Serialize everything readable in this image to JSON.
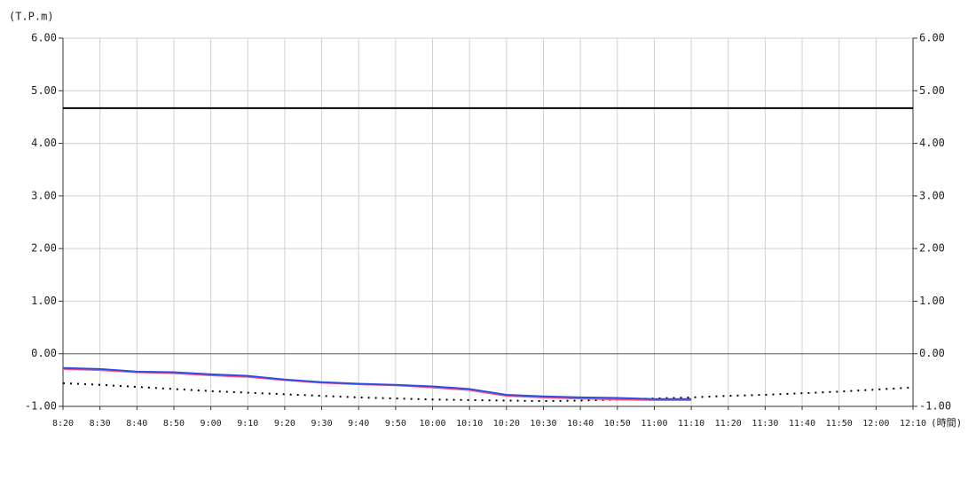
{
  "chart_data": {
    "type": "line",
    "y_label": "(T.P.m)",
    "x_label": "(時間)",
    "categories": [
      "8:20",
      "8:30",
      "8:40",
      "8:50",
      "9:00",
      "9:10",
      "9:20",
      "9:30",
      "9:40",
      "9:50",
      "10:00",
      "10:10",
      "10:20",
      "10:30",
      "10:40",
      "10:50",
      "11:00",
      "11:10",
      "11:20",
      "11:30",
      "11:40",
      "11:50",
      "12:00",
      "12:10"
    ],
    "ylim": [
      -1,
      6
    ],
    "yticks": [
      {
        "value": -1,
        "label": "-1.00"
      },
      {
        "value": 0,
        "label": "0.00"
      },
      {
        "value": 1,
        "label": "1.00"
      },
      {
        "value": 2,
        "label": "2.00"
      },
      {
        "value": 3,
        "label": "3.00"
      },
      {
        "value": 4,
        "label": "4.00"
      },
      {
        "value": 5,
        "label": "5.00"
      },
      {
        "value": 6,
        "label": "6.00"
      }
    ],
    "grid": true,
    "series": [
      {
        "color": "#000000",
        "style": "solid",
        "values": [
          4.67,
          4.67,
          4.67,
          4.67,
          4.67,
          4.67,
          4.67,
          4.67,
          4.67,
          4.67,
          4.67,
          4.67,
          4.67,
          4.67,
          4.67,
          4.67,
          4.67,
          4.67,
          4.67,
          4.67,
          4.67,
          4.67,
          4.67,
          4.67
        ]
      },
      {
        "color": "#000000",
        "style": "dotted",
        "values": [
          -0.56,
          -0.59,
          -0.63,
          -0.67,
          -0.71,
          -0.74,
          -0.77,
          -0.8,
          -0.83,
          -0.85,
          -0.87,
          -0.88,
          -0.89,
          -0.9,
          -0.89,
          -0.87,
          -0.85,
          -0.83,
          -0.8,
          -0.78,
          -0.75,
          -0.72,
          -0.68,
          -0.64
        ]
      },
      {
        "color": "#ff4d7a",
        "style": "solid",
        "values": [
          -0.29,
          -0.31,
          -0.35,
          -0.37,
          -0.41,
          -0.44,
          -0.5,
          -0.55,
          -0.58,
          -0.6,
          -0.64,
          -0.69,
          -0.8,
          -0.83,
          -0.85,
          -0.87,
          -0.88,
          -0.88,
          null,
          null,
          null,
          null,
          null,
          null
        ]
      },
      {
        "color": "#2b50e0",
        "style": "solid",
        "values": [
          -0.27,
          -0.29,
          -0.34,
          -0.35,
          -0.39,
          -0.42,
          -0.49,
          -0.54,
          -0.57,
          -0.59,
          -0.62,
          -0.67,
          -0.78,
          -0.81,
          -0.83,
          -0.84,
          -0.86,
          -0.86,
          null,
          null,
          null,
          null,
          null,
          null
        ]
      }
    ]
  }
}
